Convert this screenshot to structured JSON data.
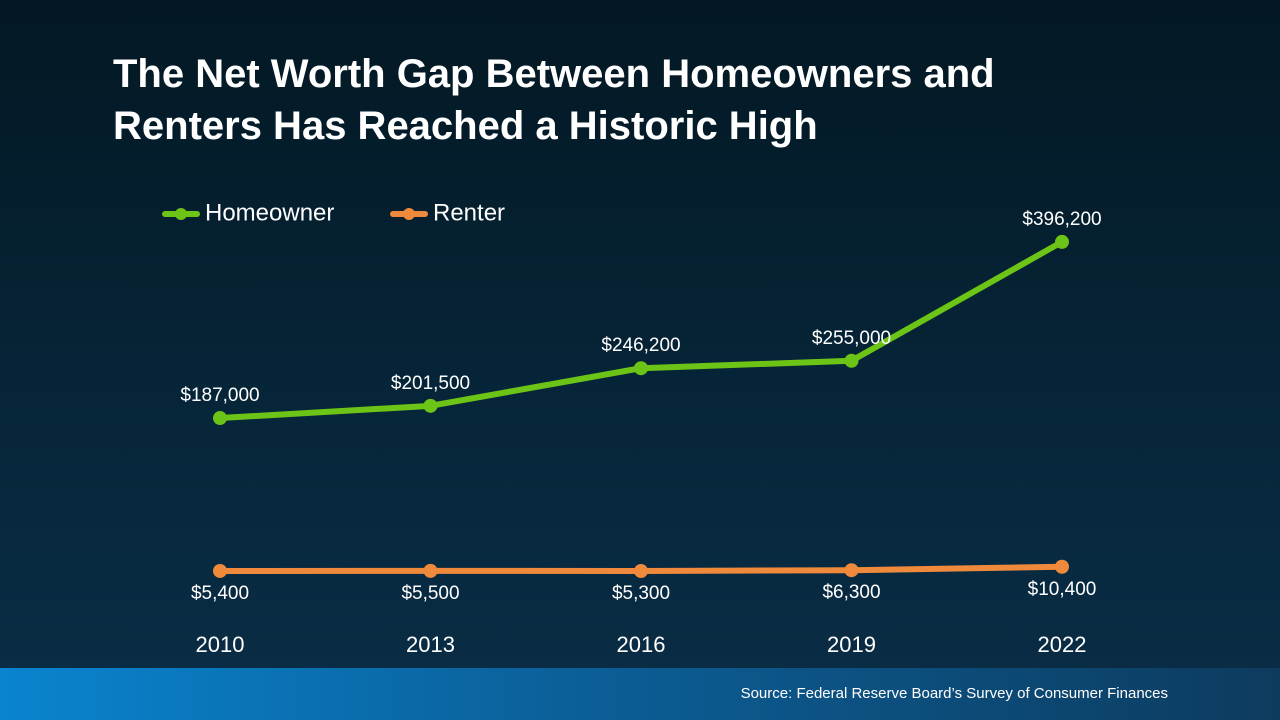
{
  "chart_data": {
    "type": "line",
    "title": "The Net Worth Gap Between Homeowners and Renters Has Reached a Historic High",
    "categories": [
      "2010",
      "2013",
      "2016",
      "2019",
      "2022"
    ],
    "series": [
      {
        "name": "Homeowner",
        "color": "#6cc417",
        "values": [
          187000,
          201500,
          246200,
          255000,
          396200
        ],
        "value_labels": [
          "$187,000",
          "$201,500",
          "$246,200",
          "$255,000",
          "$396,200"
        ]
      },
      {
        "name": "Renter",
        "color": "#ef8a3c",
        "values": [
          5400,
          5500,
          5300,
          6300,
          10400
        ],
        "value_labels": [
          "$5,400",
          "$5,500",
          "$5,300",
          "$6,300",
          "$10,400"
        ]
      }
    ],
    "ylim": [
      0,
      450000
    ],
    "legend": "top-left",
    "source": "Source: Federal Reserve Board’s Survey of Consumer Finances"
  }
}
